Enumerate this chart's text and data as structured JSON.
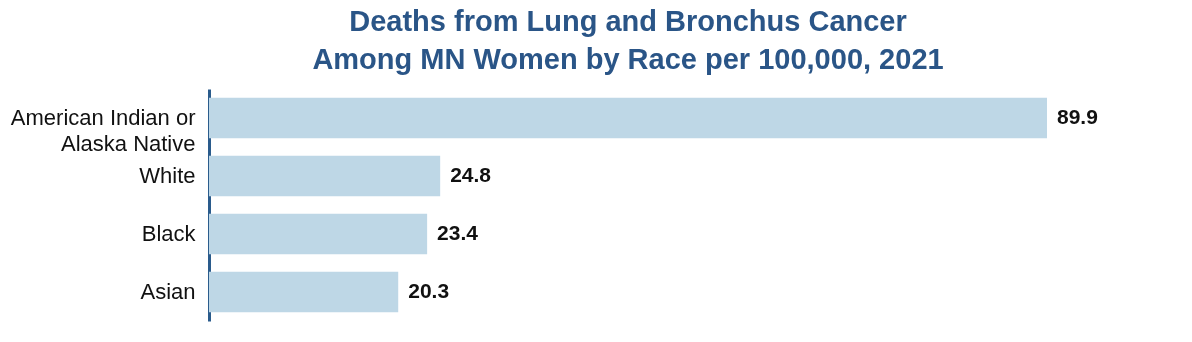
{
  "chart_data": {
    "type": "bar",
    "orientation": "horizontal",
    "title": "Deaths from Lung and Bronchus Cancer\nAmong MN Women by Race per 100,000, 2021",
    "categories": [
      "American Indian or Alaska Native",
      "White",
      "Black",
      "Asian"
    ],
    "values": [
      89.9,
      24.8,
      23.4,
      20.3
    ],
    "color": "#bed7e6",
    "data_labels": true
  }
}
